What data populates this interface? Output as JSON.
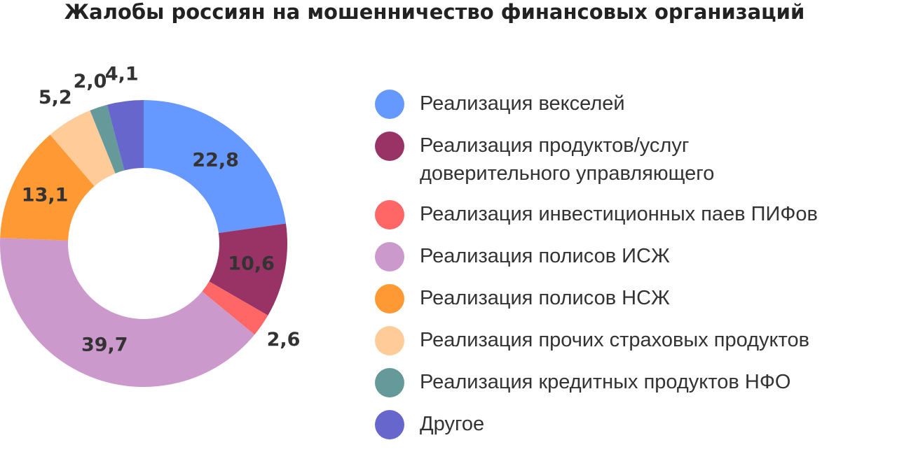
{
  "chart_data": {
    "type": "donut",
    "title": "Жалобы россиян на мошенничество финансовых организаций",
    "categories": [
      "Реализация векселей",
      "Реализация продуктов/услуг доверительного управляющего",
      "Реализация инвестиционных паев ПИФов",
      "Реализация полисов ИСЖ",
      "Реализация полисов НСЖ",
      "Реализация прочих страховых продуктов",
      "Реализация кредитных продуктов НФО",
      "Другое"
    ],
    "values": [
      22.8,
      10.6,
      2.6,
      39.7,
      13.1,
      5.2,
      2.0,
      4.1
    ],
    "value_labels": [
      "22,8",
      "10,6",
      "2,6",
      "39,7",
      "13,1",
      "5,2",
      "2,0",
      "4,1"
    ],
    "colors": [
      "#6699ff",
      "#993366",
      "#ff6666",
      "#cc99cc",
      "#ff9933",
      "#ffcc99",
      "#669999",
      "#6666cc"
    ]
  }
}
